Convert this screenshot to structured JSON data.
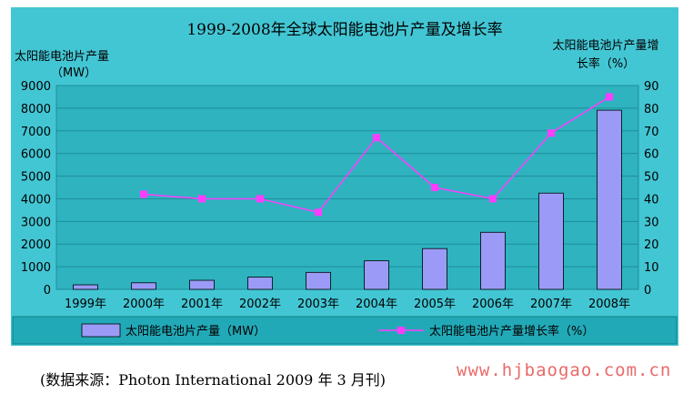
{
  "chart_data": {
    "type": "bar",
    "title": "1999-2008年全球太阳能电池片产量及增长率",
    "categories": [
      "1999年",
      "2000年",
      "2001年",
      "2002年",
      "2003年",
      "2004年",
      "2005年",
      "2006年",
      "2007年",
      "2008年"
    ],
    "y_left": {
      "label_line1": "太阳能电池片产量",
      "label_line2": "（MW）",
      "ylim": [
        0,
        9000
      ],
      "ticks": [
        0,
        1000,
        2000,
        3000,
        4000,
        5000,
        6000,
        7000,
        8000,
        9000
      ]
    },
    "y_right": {
      "label_line1": "太阳能电池片产量增",
      "label_line2": "长率（%）",
      "ylim": [
        0,
        90
      ],
      "ticks": [
        0,
        10,
        20,
        30,
        40,
        50,
        60,
        70,
        80,
        90
      ]
    },
    "series": [
      {
        "name": "太阳能电池片产量（MW）",
        "type": "bar",
        "axis": "left",
        "color": "#9b9bf7",
        "values": [
          200,
          290,
          400,
          540,
          750,
          1260,
          1800,
          2520,
          4250,
          7910
        ]
      },
      {
        "name": "太阳能电池片产量增长率（%）",
        "type": "line",
        "axis": "right",
        "color": "#ff3cff",
        "values": [
          null,
          42,
          40,
          40,
          34,
          67,
          45,
          40,
          69,
          85
        ]
      }
    ],
    "grid": true,
    "legend_position": "bottom",
    "colors": {
      "background": "#43c6d4",
      "plot": "#2eb3bf",
      "legend": "#22a9b7"
    }
  },
  "source_note": "(数据来源：Photon International 2009 年 3 月刊)",
  "watermark": "www.hjbaogao.com.cn"
}
